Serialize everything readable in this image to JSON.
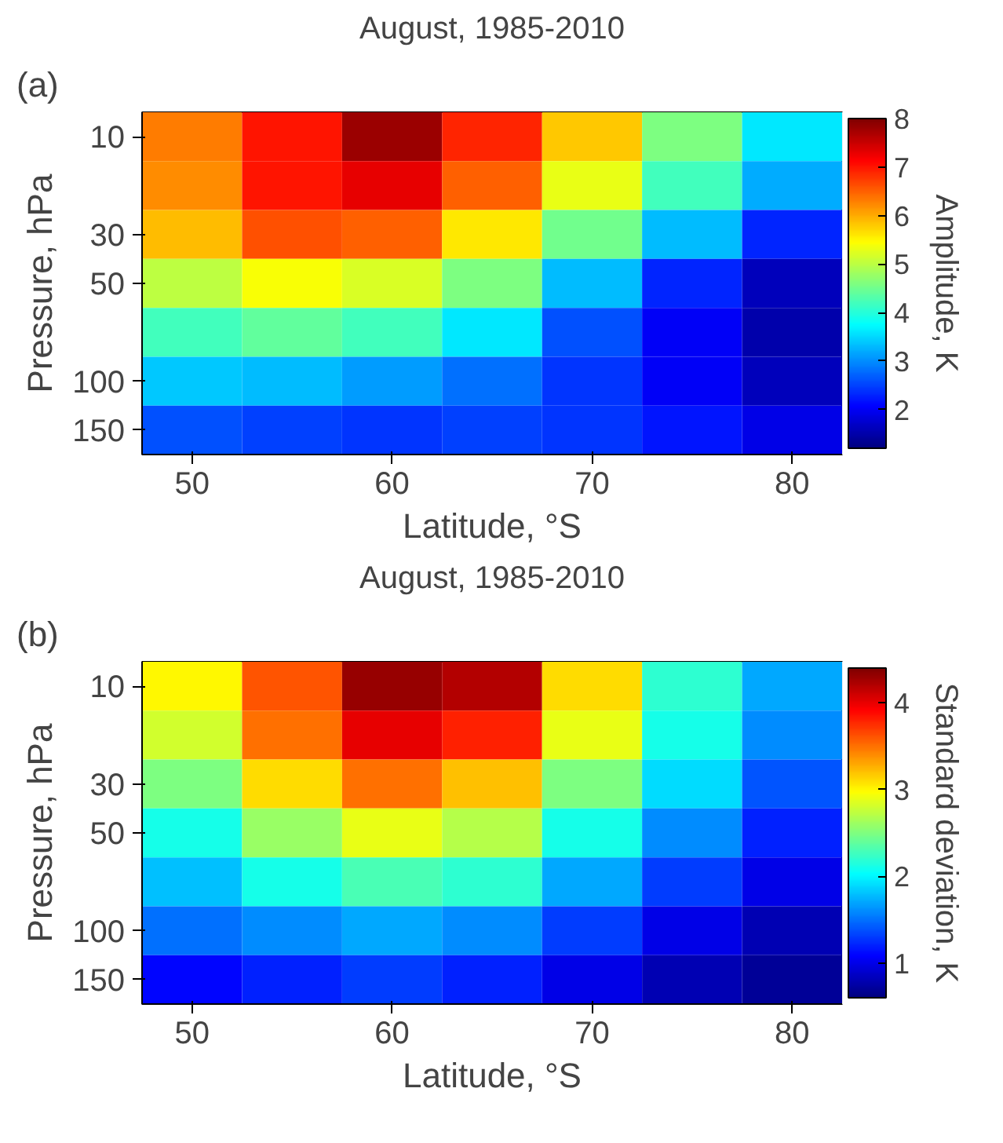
{
  "chart_data": [
    {
      "type": "heatmap",
      "title": "August, 1985-2010",
      "xlabel": "Latitude, °S",
      "ylabel": "Pressure, hPa",
      "clabel": "Amplitude, K",
      "annotations": [
        "(a)"
      ],
      "categories": [
        "50",
        null,
        "60",
        null,
        "70",
        null,
        "80"
      ],
      "y_categories": [
        "10",
        null,
        "30",
        "50",
        null,
        "100",
        "150"
      ],
      "cells": [
        [
          6.3,
          7.0,
          7.8,
          6.9,
          5.8,
          4.6,
          3.6
        ],
        [
          6.2,
          7.0,
          7.3,
          6.5,
          5.3,
          4.2,
          3.2
        ],
        [
          5.9,
          6.6,
          6.5,
          5.6,
          4.5,
          3.3,
          2.3
        ],
        [
          5.0,
          5.4,
          5.2,
          4.6,
          3.3,
          2.3,
          1.6
        ],
        [
          4.2,
          4.4,
          4.2,
          3.6,
          2.6,
          2.0,
          1.5
        ],
        [
          3.4,
          3.3,
          3.1,
          2.8,
          2.4,
          2.0,
          1.6
        ],
        [
          2.6,
          2.5,
          2.4,
          2.5,
          2.4,
          2.2,
          1.9
        ]
      ],
      "clim": [
        1.2,
        8
      ],
      "cticks": [
        2,
        3,
        4,
        5,
        6,
        7,
        8
      ],
      "grid": false
    },
    {
      "type": "heatmap",
      "title": "August, 1985-2010",
      "xlabel": "Latitude, °S",
      "ylabel": "Pressure, hPa",
      "clabel": "Standard deviation, K",
      "annotations": [
        "(b)"
      ],
      "categories": [
        "50",
        null,
        "60",
        null,
        "70",
        null,
        "80"
      ],
      "y_categories": [
        "10",
        null,
        "30",
        "50",
        null,
        "100",
        "150"
      ],
      "cells": [
        [
          3.0,
          3.6,
          4.3,
          4.2,
          3.1,
          2.2,
          1.7
        ],
        [
          2.8,
          3.5,
          4.0,
          3.8,
          2.9,
          2.1,
          1.6
        ],
        [
          2.5,
          3.1,
          3.5,
          3.2,
          2.5,
          1.9,
          1.4
        ],
        [
          2.1,
          2.6,
          2.9,
          2.7,
          2.1,
          1.6,
          1.2
        ],
        [
          1.8,
          2.1,
          2.3,
          2.2,
          1.7,
          1.3,
          1.0
        ],
        [
          1.5,
          1.6,
          1.7,
          1.6,
          1.3,
          1.0,
          0.8
        ],
        [
          1.1,
          1.2,
          1.3,
          1.2,
          1.0,
          0.8,
          0.7
        ]
      ],
      "clim": [
        0.6,
        4.4
      ],
      "cticks": [
        1,
        2,
        3,
        4
      ],
      "grid": false
    }
  ]
}
